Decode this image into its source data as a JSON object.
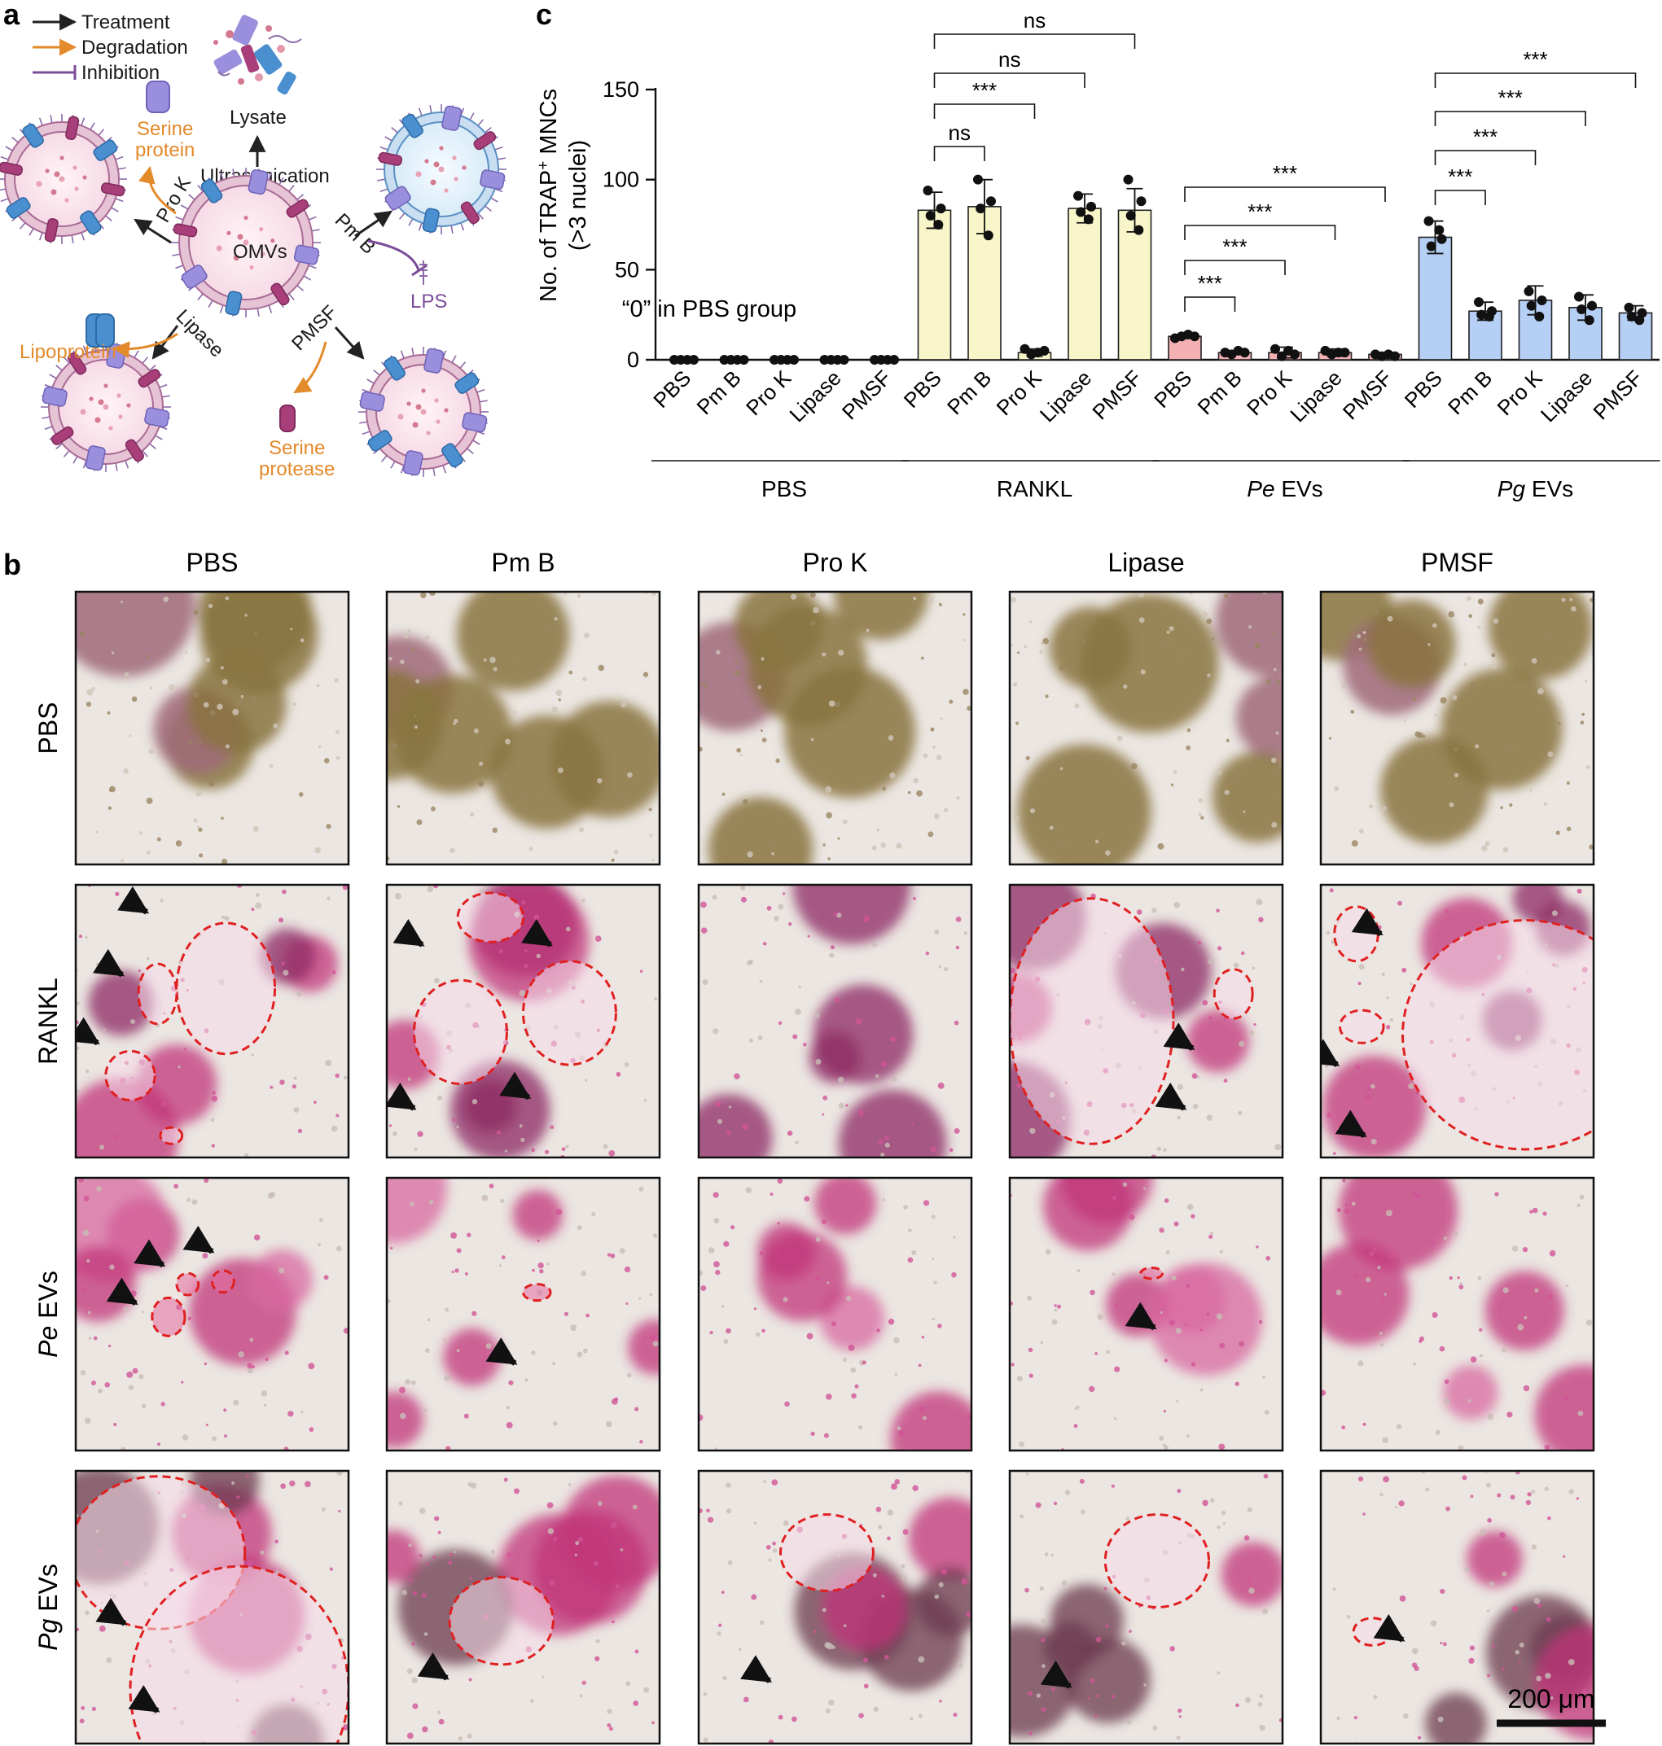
{
  "panel_a": {
    "letter": "a",
    "legend": [
      "Treatment",
      "Degradation",
      "Inhibition"
    ],
    "labels": {
      "lysate": "Lysate",
      "ultrasonication": "Ultrasonication",
      "omvs": "OMVs",
      "serine_protein_1": "Serine",
      "serine_protein_2": "protein",
      "pro_k": "Pro K",
      "pm_b": "Pm B",
      "lipase": "Lipase",
      "pmsf": "PMSF",
      "lps": "LPS",
      "lipoprotein": "Lipoprotein",
      "serine_protease_1": "Serine",
      "serine_protease_2": "protease"
    }
  },
  "panel_c": {
    "letter": "c",
    "empty_note": "“0” in PBS group",
    "significance": {
      "ns": "ns",
      "stars": "***"
    }
  },
  "chart_data": {
    "type": "bar",
    "ylabel_main": "No. of  TRAP",
    "ylabel_sup": "+",
    "ylabel_rest": " MNCs",
    "ylabel2": "(>3 nuclei)",
    "ylim": [
      0,
      150
    ],
    "yticks": [
      "0",
      "50",
      "100",
      "150"
    ],
    "groups": [
      {
        "name": "PBS",
        "italic": "",
        "color": "#ffffff",
        "categories": [
          "PBS",
          "Pm B",
          "Pro K",
          "Lipase",
          "PMSF"
        ],
        "values": [
          0,
          0,
          0,
          0,
          0
        ],
        "sd": [
          0,
          0,
          0,
          0,
          0
        ],
        "points": [
          [
            0,
            0,
            0,
            0
          ],
          [
            0,
            0,
            0,
            0
          ],
          [
            0,
            0,
            0,
            0
          ],
          [
            0,
            0,
            0,
            0
          ],
          [
            0,
            0,
            0,
            0
          ]
        ]
      },
      {
        "name": "RANKL",
        "italic": "",
        "color": "#f8f6c8",
        "categories": [
          "PBS",
          "Pm B",
          "Pro K",
          "Lipase",
          "PMSF"
        ],
        "values": [
          83,
          85,
          4,
          84,
          83
        ],
        "sd": [
          10,
          15,
          2,
          8,
          12
        ],
        "points": [
          [
            94,
            84,
            80,
            75
          ],
          [
            100,
            88,
            84,
            69
          ],
          [
            6,
            3,
            4,
            5
          ],
          [
            91,
            85,
            82,
            78
          ],
          [
            100,
            88,
            80,
            72
          ]
        ]
      },
      {
        "name": "EVs",
        "italic": "Pe",
        "color": "#f4b1b4",
        "categories": [
          "PBS",
          "Pm B",
          "Pro K",
          "Lipase",
          "PMSF"
        ],
        "values": [
          13,
          4,
          4,
          4,
          3
        ],
        "sd": [
          1,
          1,
          3,
          2,
          1
        ],
        "points": [
          [
            12,
            13,
            14,
            13
          ],
          [
            4,
            3,
            5,
            4
          ],
          [
            6,
            2,
            5,
            3
          ],
          [
            5,
            3,
            4,
            4
          ],
          [
            3,
            2,
            3,
            2
          ]
        ]
      },
      {
        "name": "EVs",
        "italic": "Pg",
        "color": "#b6cff4",
        "categories": [
          "PBS",
          "Pm B",
          "Pro K",
          "Lipase",
          "PMSF"
        ],
        "values": [
          68,
          27,
          33,
          29,
          26
        ],
        "sd": [
          9,
          5,
          8,
          7,
          4
        ],
        "points": [
          [
            77,
            67,
            63,
            72
          ],
          [
            32,
            27,
            25,
            24
          ],
          [
            38,
            33,
            30,
            24
          ],
          [
            35,
            30,
            28,
            22
          ],
          [
            29,
            26,
            24,
            22
          ]
        ]
      }
    ],
    "comparisons": [
      {
        "group": 1,
        "from": 0,
        "to": 1,
        "label": "ns"
      },
      {
        "group": 1,
        "from": 0,
        "to": 2,
        "label": "***"
      },
      {
        "group": 1,
        "from": 0,
        "to": 3,
        "label": "ns"
      },
      {
        "group": 1,
        "from": 0,
        "to": 4,
        "label": "ns"
      },
      {
        "group": 2,
        "from": 0,
        "to": 1,
        "label": "***"
      },
      {
        "group": 2,
        "from": 0,
        "to": 2,
        "label": "***"
      },
      {
        "group": 2,
        "from": 0,
        "to": 3,
        "label": "***"
      },
      {
        "group": 2,
        "from": 0,
        "to": 4,
        "label": "***"
      },
      {
        "group": 3,
        "from": 0,
        "to": 1,
        "label": "***"
      },
      {
        "group": 3,
        "from": 0,
        "to": 2,
        "label": "***"
      },
      {
        "group": 3,
        "from": 0,
        "to": 3,
        "label": "***"
      },
      {
        "group": 3,
        "from": 0,
        "to": 4,
        "label": "***"
      }
    ]
  },
  "panel_b": {
    "letter": "b",
    "col_headers": [
      "PBS",
      "Pm B",
      "Pro K",
      "Lipase",
      "PMSF"
    ],
    "rows": [
      {
        "italic": "",
        "label": "PBS"
      },
      {
        "italic": "",
        "label": "RANKL"
      },
      {
        "italic": "Pe",
        "label": " EVs"
      },
      {
        "italic": "Pg",
        "label": " EVs"
      }
    ],
    "scale_bar": "200 μm",
    "colors": {
      "background": "#ebe6e2",
      "cells_brown": "#8a7440",
      "trap_magenta": "#c2347a",
      "outline_red": "#e02020"
    }
  }
}
